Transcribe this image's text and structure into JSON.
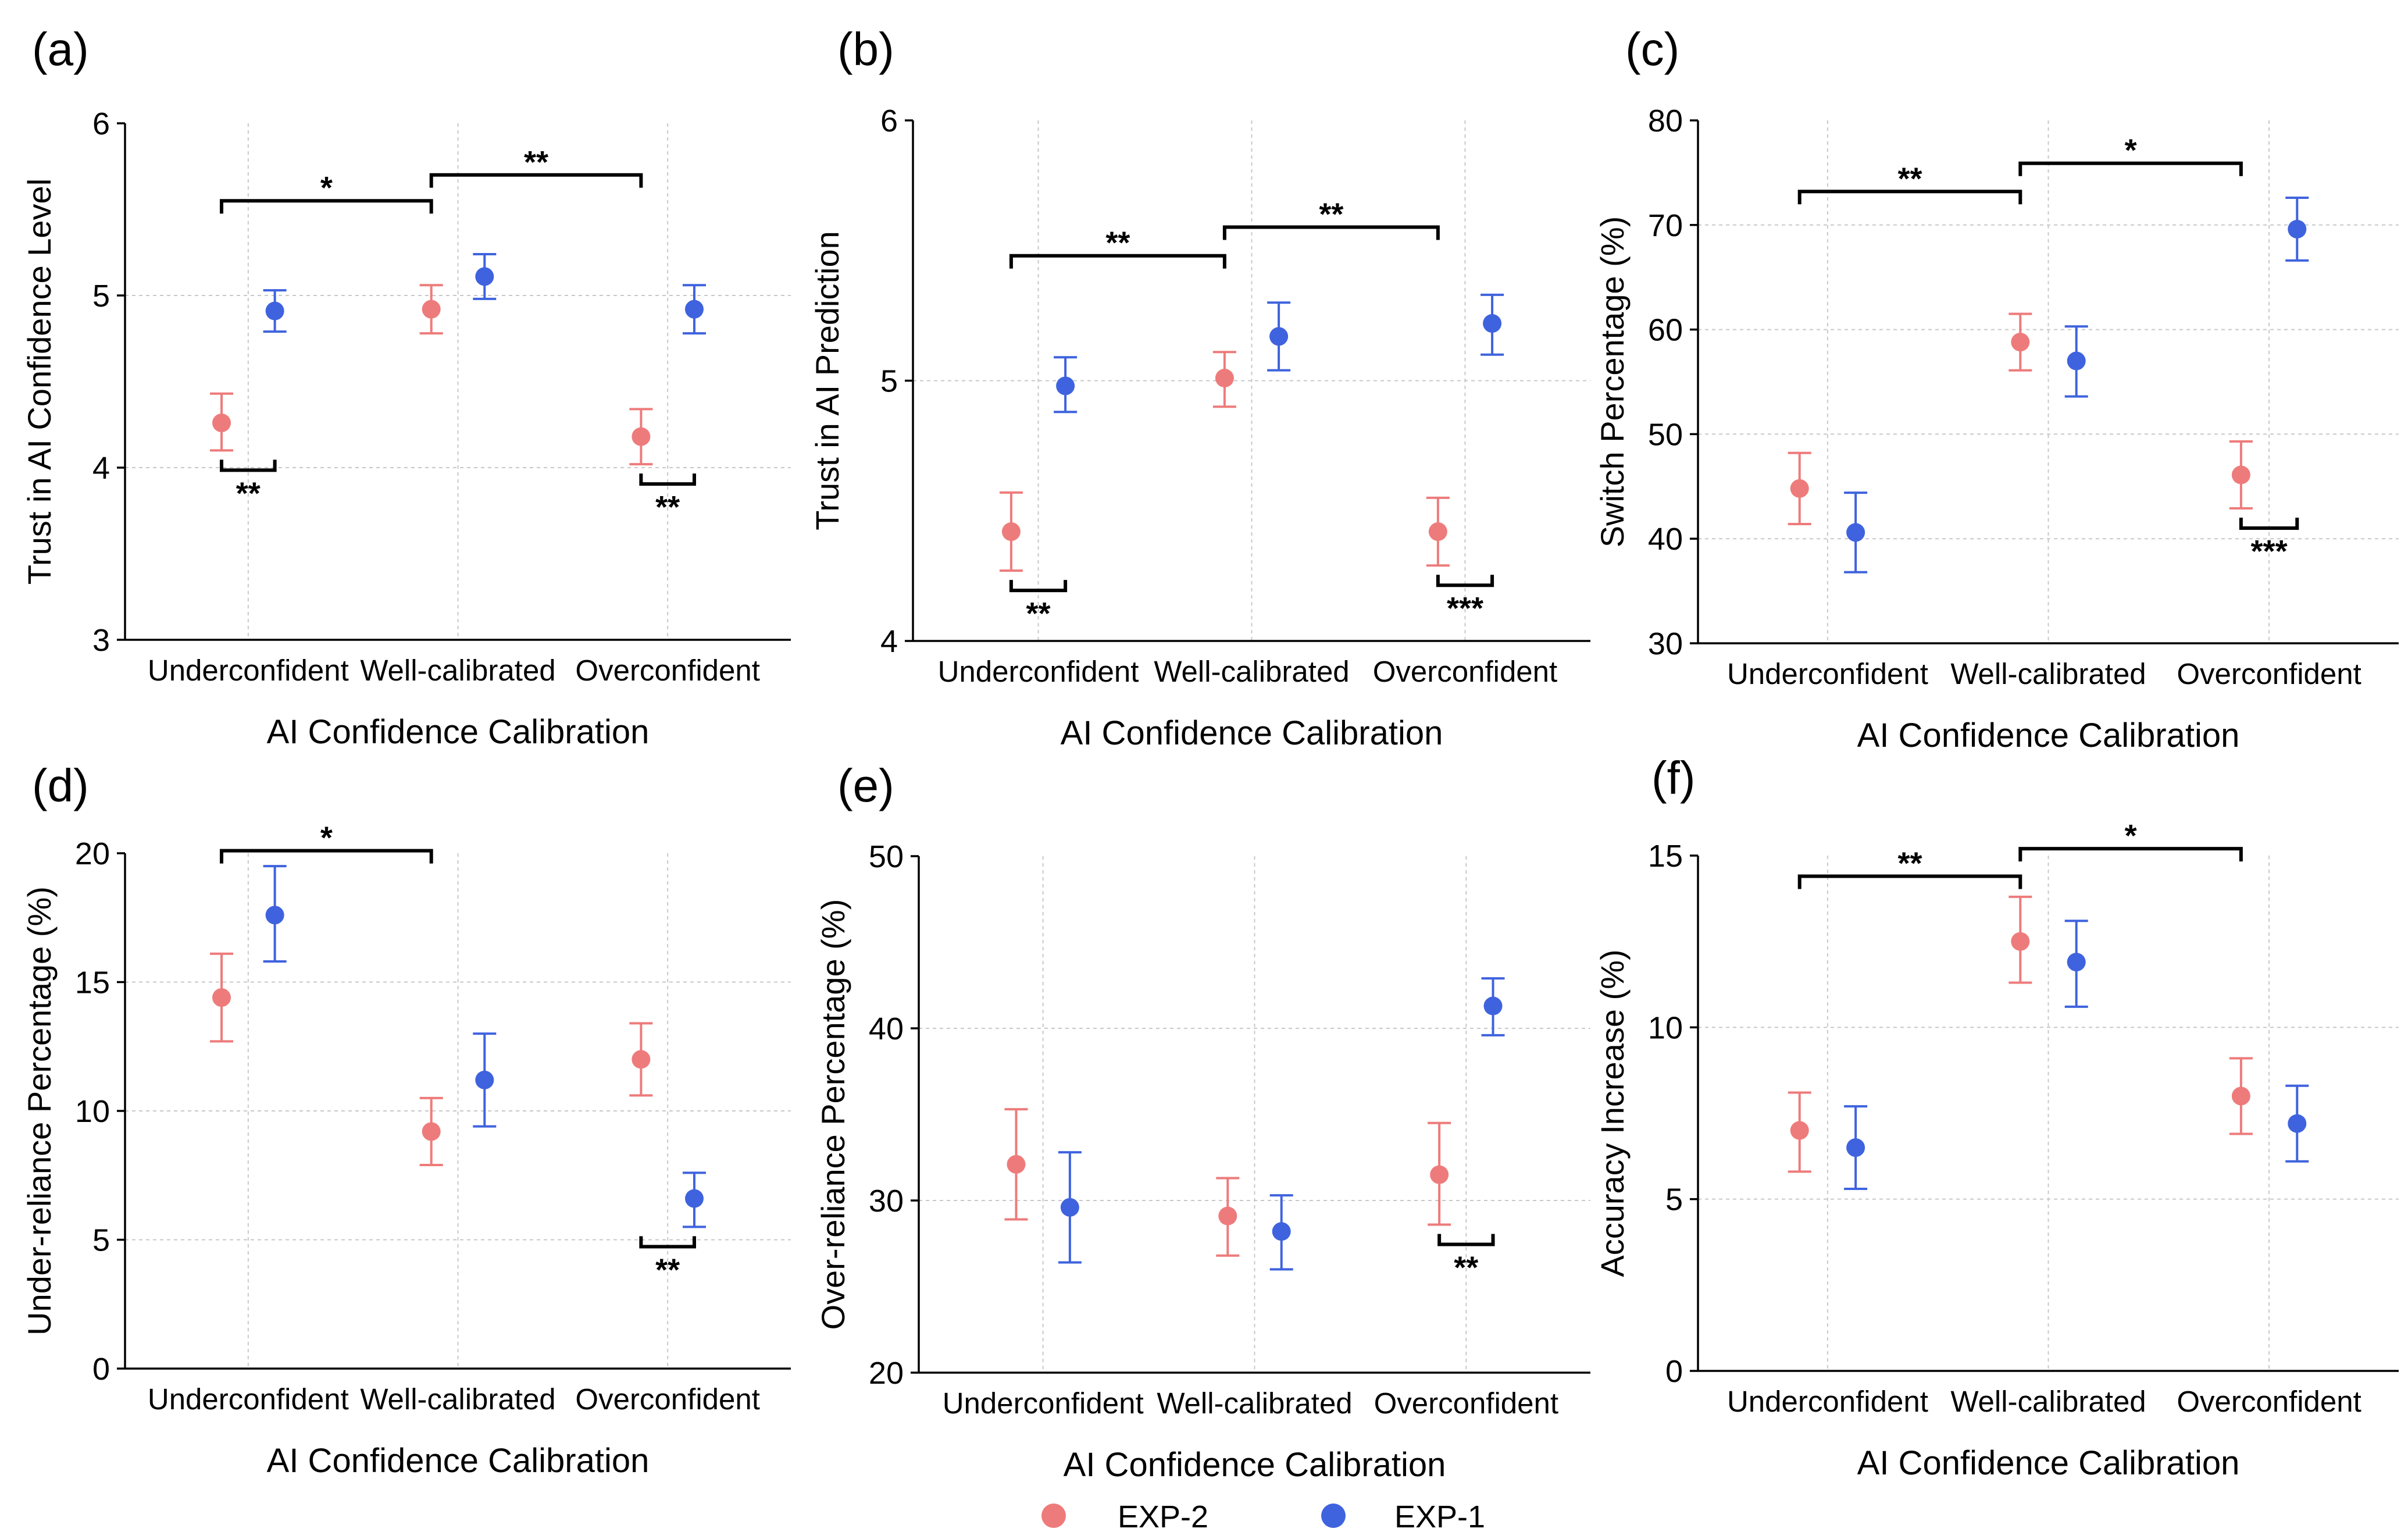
{
  "legend": [
    {
      "name": "EXP-2",
      "color": "#ee7b7b"
    },
    {
      "name": "EXP-1",
      "color": "#3f63de"
    }
  ],
  "chart_data": [
    {
      "panel": "(a)",
      "type": "scatter",
      "xlabel": "AI Confidence Calibration",
      "ylabel": "Trust in AI Confidence Level",
      "categories": [
        "Underconfident",
        "Well-calibrated",
        "Overconfident"
      ],
      "ylim": [
        3,
        6
      ],
      "yticks": [
        "3",
        "4",
        "5",
        "6"
      ],
      "series": [
        {
          "name": "EXP-2",
          "values": [
            4.26,
            4.92,
            4.18
          ],
          "err_low": [
            4.1,
            4.78,
            4.02
          ],
          "err_high": [
            4.43,
            5.06,
            4.34
          ]
        },
        {
          "name": "EXP-1",
          "values": [
            4.91,
            5.11,
            4.92
          ],
          "err_low": [
            4.79,
            4.98,
            4.78
          ],
          "err_high": [
            5.03,
            5.24,
            5.06
          ]
        }
      ],
      "significance_between": [
        {
          "from": 0,
          "to": 1,
          "label": "*",
          "at": 5.55
        },
        {
          "from": 1,
          "to": 2,
          "label": "**",
          "at": 5.7
        }
      ],
      "significance_within": [
        {
          "category": 0,
          "label": "**"
        },
        {
          "category": 2,
          "label": "**"
        }
      ]
    },
    {
      "panel": "(b)",
      "type": "scatter",
      "xlabel": "AI Confidence Calibration",
      "ylabel": "Trust in AI Prediction",
      "categories": [
        "Underconfident",
        "Well-calibrated",
        "Overconfident"
      ],
      "ylim": [
        4,
        6
      ],
      "yticks": [
        "4",
        "5",
        "6"
      ],
      "series": [
        {
          "name": "EXP-2",
          "values": [
            4.42,
            5.01,
            4.42
          ],
          "err_low": [
            4.27,
            4.9,
            4.29
          ],
          "err_high": [
            4.57,
            5.11,
            4.55
          ]
        },
        {
          "name": "EXP-1",
          "values": [
            4.98,
            5.17,
            5.22
          ],
          "err_low": [
            4.88,
            5.04,
            5.1
          ],
          "err_high": [
            5.09,
            5.3,
            5.33
          ]
        }
      ],
      "significance_between": [
        {
          "from": 0,
          "to": 1,
          "label": "**",
          "at": 5.48
        },
        {
          "from": 1,
          "to": 2,
          "label": "**",
          "at": 5.59
        }
      ],
      "significance_within": [
        {
          "category": 0,
          "label": "**"
        },
        {
          "category": 2,
          "label": "***"
        }
      ]
    },
    {
      "panel": "(c)",
      "type": "scatter",
      "xlabel": "AI Confidence Calibration",
      "ylabel": "Switch Percentage (%)",
      "categories": [
        "Underconfident",
        "Well-calibrated",
        "Overconfident"
      ],
      "ylim": [
        30,
        80
      ],
      "yticks": [
        "30",
        "40",
        "50",
        "60",
        "70",
        "80"
      ],
      "series": [
        {
          "name": "EXP-2",
          "values": [
            44.8,
            58.8,
            46.1
          ],
          "err_low": [
            41.4,
            56.1,
            42.9
          ],
          "err_high": [
            48.2,
            61.5,
            49.3
          ]
        },
        {
          "name": "EXP-1",
          "values": [
            40.6,
            57.0,
            69.6
          ],
          "err_low": [
            36.8,
            53.6,
            66.6
          ],
          "err_high": [
            44.4,
            60.3,
            72.6
          ]
        }
      ],
      "significance_between": [
        {
          "from": 0,
          "to": 1,
          "label": "**",
          "at": 73.2
        },
        {
          "from": 1,
          "to": 2,
          "label": "*",
          "at": 75.9
        }
      ],
      "significance_within": [
        {
          "category": 2,
          "label": "***"
        }
      ]
    },
    {
      "panel": "(d)",
      "type": "scatter",
      "xlabel": "AI Confidence Calibration",
      "ylabel": "Under-reliance Percentage (%)",
      "categories": [
        "Underconfident",
        "Well-calibrated",
        "Overconfident"
      ],
      "ylim": [
        0,
        20
      ],
      "yticks": [
        "0",
        "5",
        "10",
        "15",
        "20"
      ],
      "series": [
        {
          "name": "EXP-2",
          "values": [
            14.4,
            9.2,
            12.0
          ],
          "err_low": [
            12.7,
            7.9,
            10.6
          ],
          "err_high": [
            16.1,
            10.5,
            13.4
          ]
        },
        {
          "name": "EXP-1",
          "values": [
            17.6,
            11.2,
            6.6
          ],
          "err_low": [
            15.8,
            9.4,
            5.5
          ],
          "err_high": [
            19.5,
            13.0,
            7.6
          ]
        }
      ],
      "significance_between": [
        {
          "from": 0,
          "to": 1,
          "label": "*",
          "at": 20.1
        }
      ],
      "significance_within": [
        {
          "category": 2,
          "label": "**"
        }
      ]
    },
    {
      "panel": "(e)",
      "type": "scatter",
      "xlabel": "AI Confidence Calibration",
      "ylabel": "Over-reliance Percentage (%)",
      "categories": [
        "Underconfident",
        "Well-calibrated",
        "Overconfident"
      ],
      "ylim": [
        20,
        50
      ],
      "yticks": [
        "20",
        "30",
        "40",
        "50"
      ],
      "series": [
        {
          "name": "EXP-2",
          "values": [
            32.1,
            29.1,
            31.5
          ],
          "err_low": [
            28.9,
            26.8,
            28.6
          ],
          "err_high": [
            35.3,
            31.3,
            34.5
          ]
        },
        {
          "name": "EXP-1",
          "values": [
            29.6,
            28.2,
            41.3
          ],
          "err_low": [
            26.4,
            26.0,
            39.6
          ],
          "err_high": [
            32.8,
            30.3,
            42.9
          ]
        }
      ],
      "significance_between": [],
      "significance_within": [
        {
          "category": 2,
          "label": "**"
        }
      ]
    },
    {
      "panel": "(f)",
      "type": "scatter",
      "xlabel": "AI Confidence Calibration",
      "ylabel": "Accuracy Increase (%)",
      "categories": [
        "Underconfident",
        "Well-calibrated",
        "Overconfident"
      ],
      "ylim": [
        0,
        15
      ],
      "yticks": [
        "0",
        "5",
        "10",
        "15"
      ],
      "series": [
        {
          "name": "EXP-2",
          "values": [
            7.0,
            12.5,
            8.0
          ],
          "err_low": [
            5.8,
            11.3,
            6.9
          ],
          "err_high": [
            8.1,
            13.8,
            9.1
          ]
        },
        {
          "name": "EXP-1",
          "values": [
            6.5,
            11.9,
            7.2
          ],
          "err_low": [
            5.3,
            10.6,
            6.1
          ],
          "err_high": [
            7.7,
            13.1,
            8.3
          ]
        }
      ],
      "significance_between": [
        {
          "from": 0,
          "to": 1,
          "label": "**",
          "at": 14.4
        },
        {
          "from": 1,
          "to": 2,
          "label": "*",
          "at": 15.2
        }
      ],
      "significance_within": []
    }
  ]
}
